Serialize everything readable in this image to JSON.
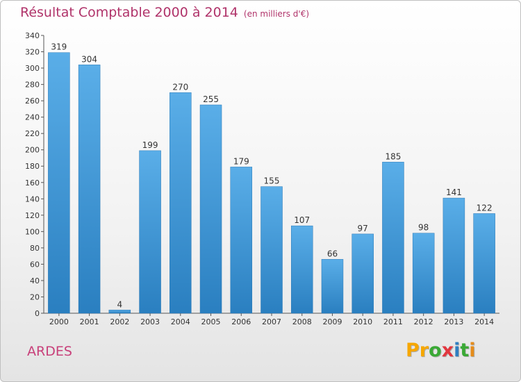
{
  "title": "Résultat Comptable 2000 à 2014",
  "subtitle": "(en milliers d'€)",
  "location": "ARDES",
  "brand": {
    "text": "Proxiti",
    "letters": [
      "P",
      "r",
      "o",
      "x",
      "i",
      "t",
      "i"
    ],
    "colors": [
      "#f6a700",
      "#f6a700",
      "#3aa935",
      "#e2373f",
      "#2f7fc1",
      "#3aa935",
      "#e58c1b"
    ]
  },
  "colors": {
    "bar_top": "#5aaee8",
    "bar_bottom": "#2a7fc0",
    "title": "#b0336a",
    "grid": "#cfcfcf"
  },
  "chart_data": {
    "type": "bar",
    "title": "Résultat Comptable 2000 à 2014",
    "subtitle": "(en milliers d'€)",
    "xlabel": "",
    "ylabel": "",
    "categories": [
      "2000",
      "2001",
      "2002",
      "2003",
      "2004",
      "2005",
      "2006",
      "2007",
      "2008",
      "2009",
      "2010",
      "2011",
      "2012",
      "2013",
      "2014"
    ],
    "values": [
      319,
      304,
      4,
      199,
      270,
      255,
      179,
      155,
      107,
      66,
      97,
      185,
      98,
      141,
      122
    ],
    "ylim": [
      0,
      340
    ],
    "ytick_step": 20,
    "grid": false,
    "legend": "none"
  }
}
